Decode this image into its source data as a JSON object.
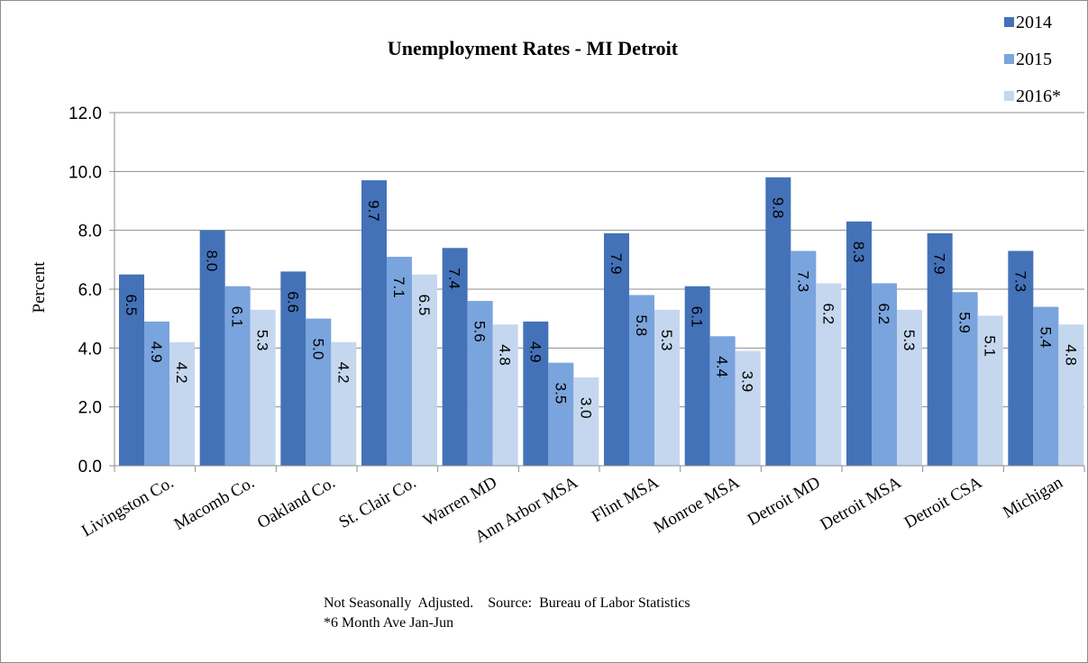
{
  "chart_data": {
    "type": "bar",
    "title": "Unemployment  Rates - MI Detroit",
    "ylabel": "Percent",
    "xlabel": "",
    "ylim": [
      0,
      12
    ],
    "yticks": [
      "0.0",
      "2.0",
      "4.0",
      "6.0",
      "8.0",
      "10.0",
      "12.0"
    ],
    "grid": true,
    "legend_position": "top-right",
    "categories": [
      "Livingston Co.",
      "Macomb Co.",
      "Oakland Co.",
      "St. Clair Co.",
      "Warren MD",
      "Ann Arbor MSA",
      "Flint MSA",
      "Monroe MSA",
      "Detroit MD",
      "Detroit MSA",
      "Detroit CSA",
      "Michigan"
    ],
    "series": [
      {
        "name": "2014",
        "color": "#4472b8",
        "values": [
          6.5,
          8.0,
          6.6,
          9.7,
          7.4,
          4.9,
          7.9,
          6.1,
          9.8,
          8.3,
          7.9,
          7.3
        ],
        "labels": [
          "6.5",
          "8.0",
          "6.6",
          "9.7",
          "7.4",
          "4.9",
          "7.9",
          "6.1",
          "9.8",
          "8.3",
          "7.9",
          "7.3"
        ]
      },
      {
        "name": "2015",
        "color": "#7aa4dd",
        "values": [
          4.9,
          6.1,
          5.0,
          7.1,
          5.6,
          3.5,
          5.8,
          4.4,
          7.3,
          6.2,
          5.9,
          5.4
        ],
        "labels": [
          "4.9",
          "6.1",
          "5.0",
          "7.1",
          "5.6",
          "3.5",
          "5.8",
          "4.4",
          "7.3",
          "6.2",
          "5.9",
          "5.4"
        ]
      },
      {
        "name": "2016*",
        "color": "#c5d7ee",
        "values": [
          4.2,
          5.3,
          4.2,
          6.5,
          4.8,
          3.0,
          5.3,
          3.9,
          6.2,
          5.3,
          5.1,
          4.8
        ],
        "labels": [
          "4.2",
          "5.3",
          "4.2",
          "6.5",
          "4.8",
          "3.0",
          "5.3",
          "3.9",
          "6.2",
          "5.3",
          "5.1",
          "4.8"
        ]
      }
    ],
    "notes": [
      "Not Seasonally  Adjusted.    Source:  Bureau of Labor Statistics",
      "*6 Month Ave Jan-Jun"
    ]
  }
}
